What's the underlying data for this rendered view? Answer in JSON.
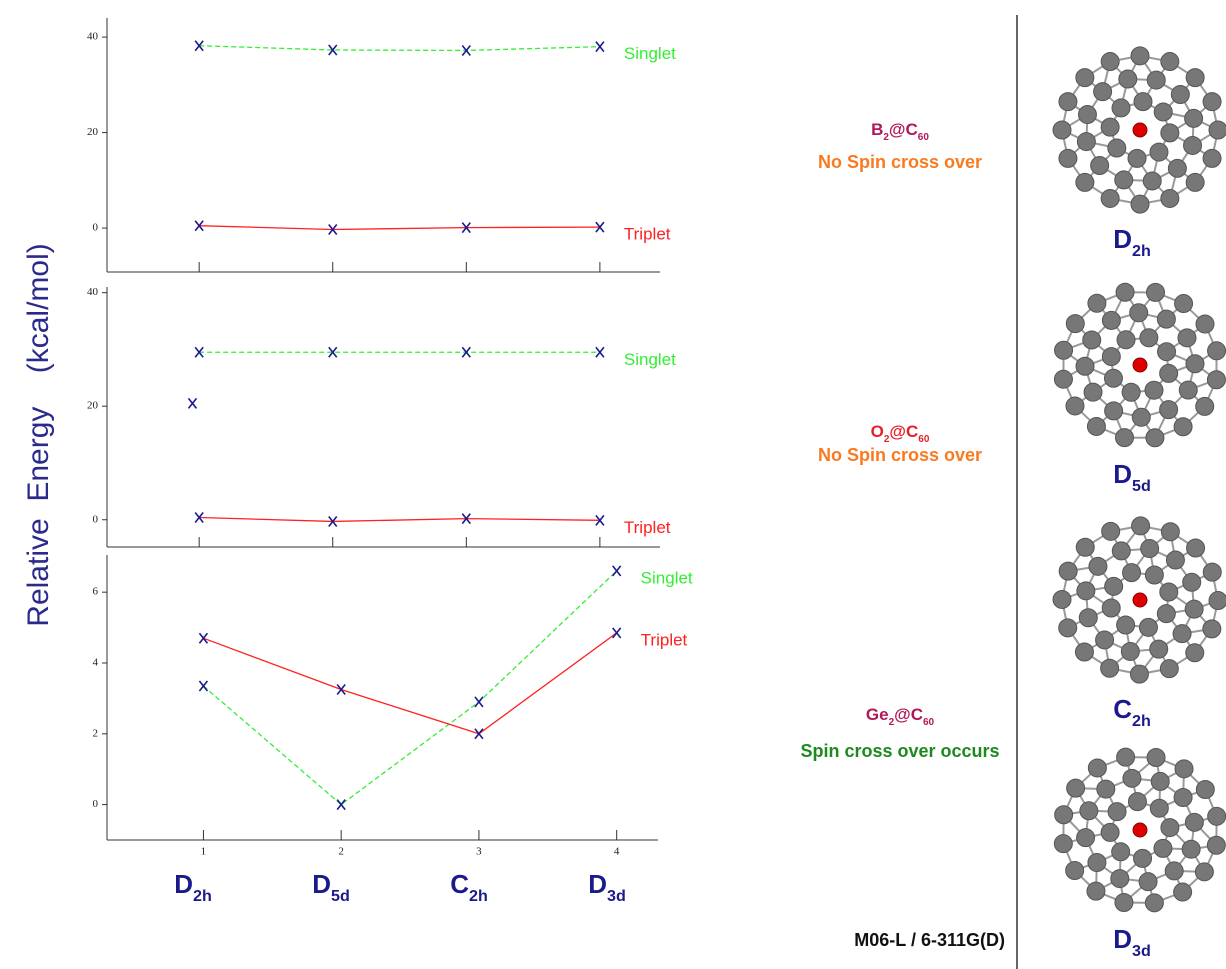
{
  "y_axis_label": "Relative  Energy    (kcal/mol)",
  "symmetries": [
    {
      "main": "D",
      "sub": "2h"
    },
    {
      "main": "D",
      "sub": "5d"
    },
    {
      "main": "C",
      "sub": "2h"
    },
    {
      "main": "D",
      "sub": "3d"
    }
  ],
  "method": "M06-L / 6-311G(D)",
  "chart_data": [
    {
      "type": "line",
      "molecule": {
        "a": "B",
        "a_sub": "2",
        "b": "@C",
        "b_sub": "60"
      },
      "molecule_color": "#b0185a",
      "note": "No Spin cross over",
      "note_color": "#f97a1f",
      "x": [
        1,
        2,
        3,
        4
      ],
      "xlim": [
        0.31,
        4.45
      ],
      "xticks": [
        1,
        2,
        3,
        4
      ],
      "xtick_labels": false,
      "ylim": [
        -9.2,
        44
      ],
      "yticks": [
        0,
        20,
        40
      ],
      "series": [
        {
          "name": "Singlet",
          "color": "#33ee33",
          "dashed": true,
          "values": [
            38.2,
            37.3,
            37.2,
            38.0
          ]
        },
        {
          "name": "Triplet",
          "color": "#ff2020",
          "dashed": false,
          "values": [
            0.5,
            -0.3,
            0.1,
            0.2
          ]
        }
      ]
    },
    {
      "type": "line",
      "molecule": {
        "a": "O",
        "a_sub": "2",
        "b": "@C",
        "b_sub": "60"
      },
      "molecule_color": "#e8202a",
      "note": "No Spin cross over",
      "note_color": "#f97a1f",
      "x": [
        1,
        2,
        3,
        4
      ],
      "xlim": [
        0.31,
        4.45
      ],
      "xticks": [
        1,
        2,
        3,
        4
      ],
      "xtick_labels": false,
      "ylim": [
        -4.8,
        41
      ],
      "yticks": [
        0,
        20,
        40
      ],
      "series": [
        {
          "name": "Singlet",
          "color": "#33ee33",
          "dashed": true,
          "values": [
            29.5,
            29.5,
            29.5,
            29.5
          ]
        },
        {
          "name": "Triplet",
          "color": "#ff2020",
          "dashed": false,
          "values": [
            0.4,
            -0.3,
            0.2,
            -0.1
          ]
        }
      ],
      "markers": [
        {
          "x": 0.95,
          "y": 20.5
        }
      ]
    },
    {
      "type": "line",
      "molecule": {
        "a": "Ge",
        "a_sub": "2",
        "b": "@C",
        "b_sub": "60"
      },
      "molecule_color": "#b0185a",
      "note": "Spin cross over occurs",
      "note_color": "#1e8a1e",
      "x": [
        1,
        2,
        3,
        4
      ],
      "xlim": [
        0.3,
        4.3
      ],
      "xticks": [
        1,
        2,
        3,
        4
      ],
      "xtick_labels": true,
      "ylim": [
        -1,
        7.05
      ],
      "yticks": [
        0,
        2,
        4,
        6
      ],
      "series": [
        {
          "name": "Singlet",
          "color": "#33ee33",
          "dashed": true,
          "values": [
            3.35,
            0.0,
            2.9,
            6.6
          ]
        },
        {
          "name": "Triplet",
          "color": "#ff2020",
          "dashed": false,
          "values": [
            4.7,
            3.25,
            2.0,
            4.85
          ]
        }
      ]
    }
  ]
}
